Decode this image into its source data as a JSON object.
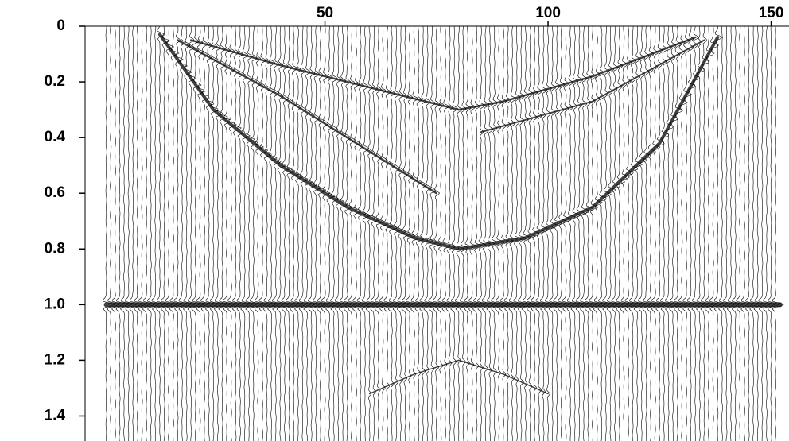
{
  "chart_data": {
    "type": "seismic",
    "traces": 151,
    "xlim": [
      -3.75,
      154
    ],
    "ylim": [
      0,
      1.49
    ],
    "xticks": [
      50,
      100,
      150
    ],
    "yticks": [
      0,
      0.2,
      0.4,
      0.6,
      0.8,
      {
        "value": 1,
        "label": "1.0"
      },
      1.2,
      1.4
    ],
    "color": "#000000",
    "events": [
      {
        "x": [
          13,
          25,
          40,
          55,
          70,
          80,
          95,
          110,
          125,
          138
        ],
        "t": [
          0.03,
          0.3,
          0.5,
          0.65,
          0.76,
          0.8,
          0.76,
          0.65,
          0.42,
          0.04
        ],
        "width": 4
      },
      {
        "x": [
          17,
          40,
          60,
          75
        ],
        "t": [
          0.05,
          0.25,
          0.45,
          0.6
        ],
        "width": 2.5
      },
      {
        "x": [
          20,
          40,
          60,
          75,
          80,
          90,
          110,
          133
        ],
        "t": [
          0.05,
          0.14,
          0.22,
          0.28,
          0.3,
          0.27,
          0.18,
          0.04
        ],
        "width": 2.5
      },
      {
        "x": [
          85,
          110,
          135
        ],
        "t": [
          0.38,
          0.27,
          0.05
        ],
        "width": 2
      },
      {
        "x": [
          1,
          40,
          80,
          120,
          152
        ],
        "t": [
          1,
          1,
          1,
          1,
          1
        ],
        "width": 6
      },
      {
        "x": [
          60,
          70,
          80,
          90,
          100
        ],
        "t": [
          1.32,
          1.25,
          1.2,
          1.25,
          1.32
        ],
        "width": 1.5
      }
    ]
  }
}
